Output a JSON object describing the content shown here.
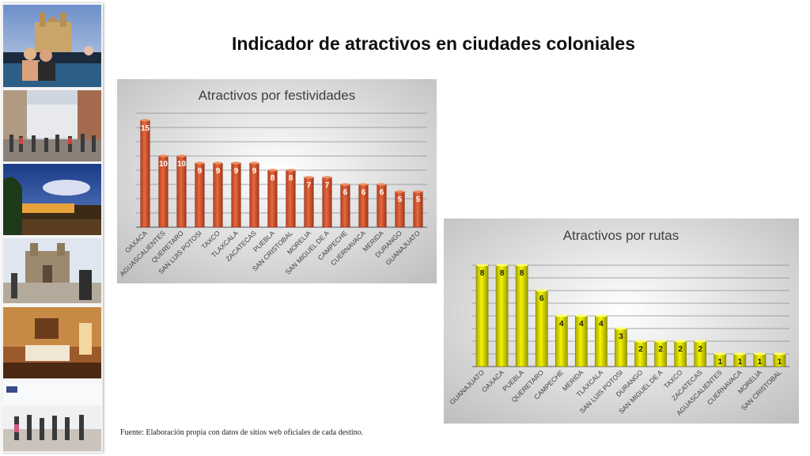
{
  "page": {
    "title": "Indicador de atractivos en ciudades coloniales",
    "source": "Fuente: Elaboración propia con datos de sitios web oficiales de cada destino."
  },
  "photos": [
    {
      "name": "photo-cathedral-rooftop"
    },
    {
      "name": "photo-pedestrian-street"
    },
    {
      "name": "photo-terrace-dusk"
    },
    {
      "name": "photo-church-plaza"
    },
    {
      "name": "photo-hotel-room"
    },
    {
      "name": "photo-shopping-arcade"
    }
  ],
  "colors": {
    "festividades_bar": "#d7552f",
    "rutas_bar": "#e2e200"
  },
  "chart_data": [
    {
      "type": "bar",
      "title": "Atractivos por festividades",
      "categories": [
        "OAXACA",
        "AGUASCALIENTES",
        "QUERETARO",
        "SAN LUIS POTOSI",
        "TAXCO",
        "TLAXCALA",
        "ZACATECAS",
        "PUEBLA",
        "SAN CRISTOBAL",
        "MORELIA",
        "SAN MIGUEL DE A",
        "CAMPECHE",
        "CUERNAVACA",
        "MERIDA",
        "DURANGO",
        "GUANAJUATO"
      ],
      "values": [
        15,
        10,
        10,
        9,
        9,
        9,
        9,
        8,
        8,
        7,
        7,
        6,
        6,
        6,
        5,
        5
      ],
      "ylim": [
        0,
        16
      ],
      "grid": true,
      "legend": "none"
    },
    {
      "type": "bar",
      "title": "Atractivos por rutas",
      "categories": [
        "GUANAJUATO",
        "OAXACA",
        "PUEBLA",
        "QUERETARO",
        "CAMPECHE",
        "MERIDA",
        "TLAXCALA",
        "SAN LUIS POTOSI",
        "DURANGO",
        "SAN MIGUEL DE A",
        "TAXCO",
        "ZACATECAS",
        "AGUASCALIENTES",
        "CUERNAVACA",
        "MORELIA",
        "SAN CRISTOBAL"
      ],
      "values": [
        8,
        8,
        8,
        6,
        4,
        4,
        4,
        3,
        2,
        2,
        2,
        2,
        1,
        1,
        1,
        1
      ],
      "ylim": [
        0,
        8
      ],
      "grid": true,
      "legend": "none"
    }
  ]
}
